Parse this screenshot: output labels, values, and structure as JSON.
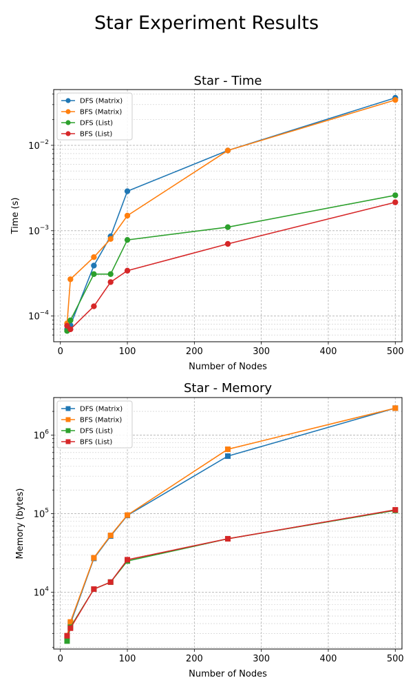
{
  "figure": {
    "title": "Star Experiment Results"
  },
  "colors": {
    "dfs_matrix": "#1f77b4",
    "bfs_matrix": "#ff7f0e",
    "dfs_list": "#2ca02c",
    "bfs_list": "#d62728"
  },
  "chart_data": [
    {
      "type": "line",
      "title": "Star - Time",
      "xlabel": "Number of Nodes",
      "ylabel": "Time (s)",
      "yscale": "log",
      "xlim": [
        -10,
        510
      ],
      "ylim": [
        5e-05,
        0.045
      ],
      "xticks": [
        0,
        100,
        200,
        300,
        400,
        500
      ],
      "ytick_exponents": [
        -4,
        -3,
        -2
      ],
      "grid": true,
      "legend_position": "upper-left",
      "marker": "circle",
      "x": [
        10,
        15,
        50,
        75,
        100,
        250,
        500
      ],
      "series": [
        {
          "name": "DFS (Matrix)",
          "color_key": "dfs_matrix",
          "values": [
            7e-05,
            7.8e-05,
            0.00039,
            0.00086,
            0.0029,
            0.0087,
            0.036
          ]
        },
        {
          "name": "BFS (Matrix)",
          "color_key": "bfs_matrix",
          "values": [
            8.2e-05,
            0.00027,
            0.00049,
            0.0008,
            0.0015,
            0.0087,
            0.034
          ]
        },
        {
          "name": "DFS (List)",
          "color_key": "dfs_list",
          "values": [
            6.7e-05,
            8.9e-05,
            0.00031,
            0.00031,
            0.00078,
            0.0011,
            0.0026
          ]
        },
        {
          "name": "BFS (List)",
          "color_key": "bfs_list",
          "values": [
            7.7e-05,
            7e-05,
            0.00013,
            0.00025,
            0.00034,
            0.0007,
            0.00215
          ]
        }
      ]
    },
    {
      "type": "line",
      "title": "Star - Memory",
      "xlabel": "Number of Nodes",
      "ylabel": "Memory (bytes)",
      "yscale": "log",
      "xlim": [
        -10,
        510
      ],
      "ylim": [
        1900,
        3000000
      ],
      "xticks": [
        0,
        100,
        200,
        300,
        400,
        500
      ],
      "ytick_exponents": [
        4,
        5,
        6
      ],
      "grid": true,
      "legend_position": "upper-left",
      "marker": "square",
      "x": [
        10,
        15,
        50,
        75,
        100,
        250,
        500
      ],
      "series": [
        {
          "name": "DFS (Matrix)",
          "color_key": "dfs_matrix",
          "values": [
            2800,
            4000,
            27000,
            52000,
            95000,
            540000,
            2200000
          ]
        },
        {
          "name": "BFS (Matrix)",
          "color_key": "bfs_matrix",
          "values": [
            2800,
            4200,
            27500,
            53000,
            96000,
            660000,
            2200000
          ]
        },
        {
          "name": "DFS (List)",
          "color_key": "dfs_list",
          "values": [
            2400,
            3600,
            11000,
            13500,
            25000,
            48000,
            110000
          ]
        },
        {
          "name": "BFS (List)",
          "color_key": "bfs_list",
          "values": [
            2800,
            3500,
            11000,
            13500,
            26000,
            48000,
            112000
          ]
        }
      ]
    }
  ]
}
